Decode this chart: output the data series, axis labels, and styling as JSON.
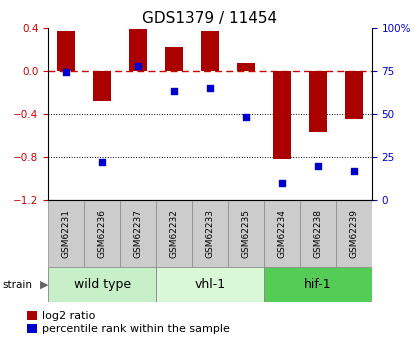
{
  "title": "GDS1379 / 11454",
  "samples": [
    "GSM62231",
    "GSM62236",
    "GSM62237",
    "GSM62232",
    "GSM62233",
    "GSM62235",
    "GSM62234",
    "GSM62238",
    "GSM62239"
  ],
  "log2_ratio": [
    0.37,
    -0.28,
    0.39,
    0.22,
    0.37,
    0.07,
    -0.82,
    -0.57,
    -0.45
  ],
  "percentile": [
    74,
    22,
    78,
    63,
    65,
    48,
    10,
    20,
    17
  ],
  "groups": [
    {
      "label": "wild type",
      "start": 0,
      "end": 3,
      "color": "#c8f0c8"
    },
    {
      "label": "vhl-1",
      "start": 3,
      "end": 6,
      "color": "#d8f8d8"
    },
    {
      "label": "hif-1",
      "start": 6,
      "end": 9,
      "color": "#55cc55"
    }
  ],
  "ylim_left": [
    -1.2,
    0.4
  ],
  "ylim_right": [
    0,
    100
  ],
  "bar_color": "#aa0000",
  "dot_color": "#0000cc",
  "zero_line_color": "#cc0000",
  "background_color": "white",
  "title_fontsize": 11,
  "tick_fontsize": 7.5,
  "sample_fontsize": 6.5,
  "group_label_fontsize": 9,
  "legend_fontsize": 8,
  "left_ytick_color": "#cc0000",
  "right_ytick_color": "#0000cc",
  "left_yticks": [
    0.4,
    0.0,
    -0.4,
    -0.8,
    -1.2
  ],
  "right_yticks": [
    100,
    75,
    50,
    25,
    0
  ],
  "bar_width": 0.5
}
